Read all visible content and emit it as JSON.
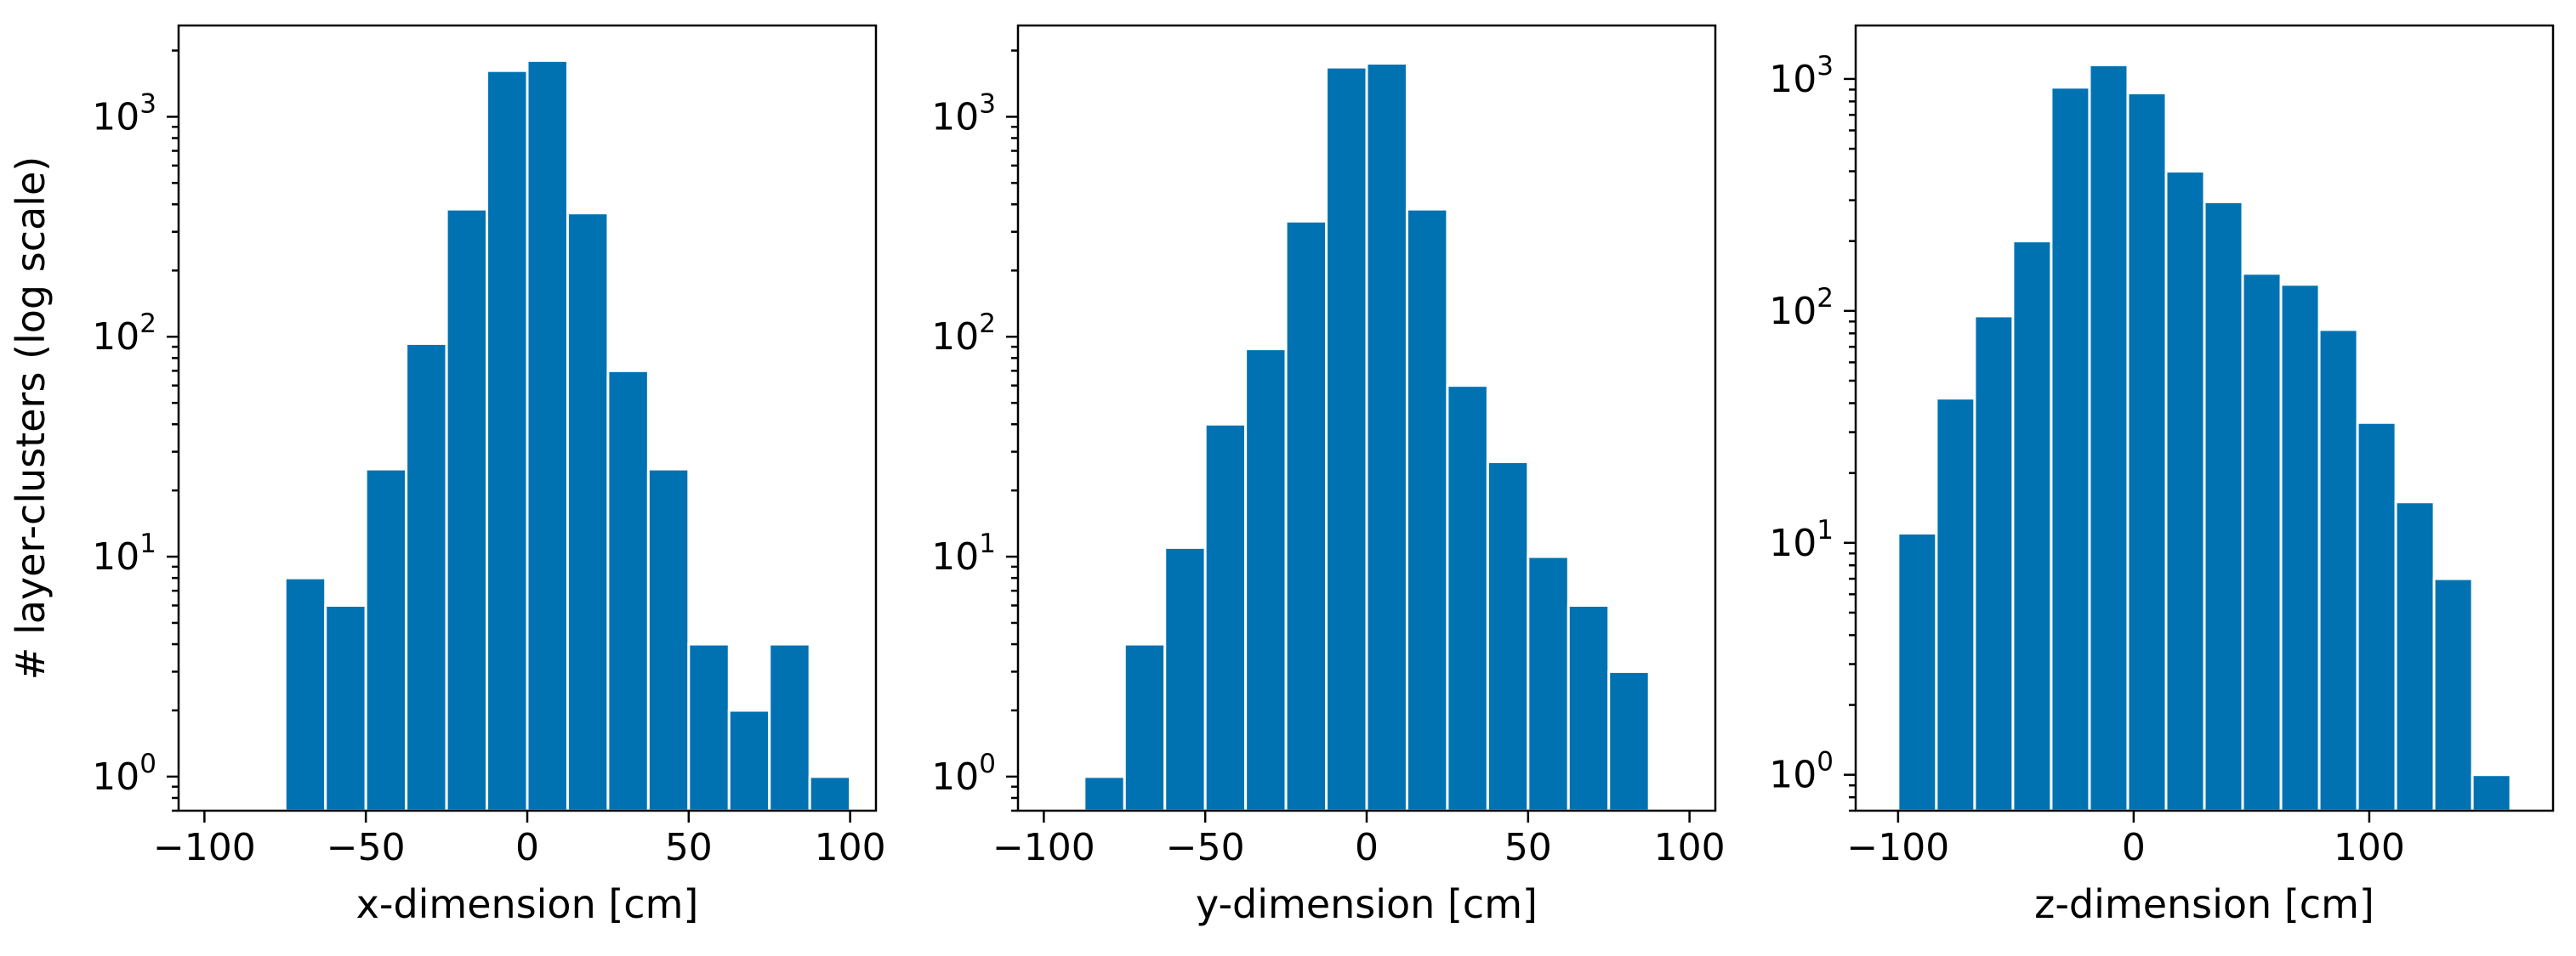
{
  "figure": {
    "ylabel": "# layer-clusters (log scale)",
    "bar_color": "#0072b2",
    "edge_color": "#ffffff"
  },
  "chart_data": [
    {
      "type": "bar",
      "title": "",
      "xlabel": "x-dimension [cm]",
      "ylabel": "# layer-clusters (log scale)",
      "yscale": "log",
      "xlim": [
        -108,
        108
      ],
      "ylim": [
        0.7,
        2600
      ],
      "xticks": [
        -100,
        -50,
        0,
        50,
        100
      ],
      "xtick_labels": [
        "−100",
        "−50",
        "0",
        "50",
        "100"
      ],
      "yticks": [
        1,
        10,
        100,
        1000
      ],
      "ytick_labels": [
        "10",
        "10",
        "10",
        "10"
      ],
      "ytick_exponents": [
        "0",
        "1",
        "2",
        "3"
      ],
      "bin_edges": [
        -75,
        -62.5,
        -50,
        -37.5,
        -25,
        -12.5,
        0,
        12.5,
        25,
        37.5,
        50,
        62.5,
        75,
        87.5,
        100
      ],
      "values": [
        8,
        6,
        25,
        93,
        380,
        1620,
        1800,
        365,
        70,
        25,
        4,
        2,
        4,
        1
      ]
    },
    {
      "type": "bar",
      "title": "",
      "xlabel": "y-dimension [cm]",
      "ylabel": "",
      "yscale": "log",
      "xlim": [
        -108,
        108
      ],
      "ylim": [
        0.7,
        2600
      ],
      "xticks": [
        -100,
        -50,
        0,
        50,
        100
      ],
      "xtick_labels": [
        "−100",
        "−50",
        "0",
        "50",
        "100"
      ],
      "yticks": [
        1,
        10,
        100,
        1000
      ],
      "ytick_labels": [
        "10",
        "10",
        "10",
        "10"
      ],
      "ytick_exponents": [
        "0",
        "1",
        "2",
        "3"
      ],
      "bin_edges": [
        -87.5,
        -75,
        -62.5,
        -50,
        -37.5,
        -25,
        -12.5,
        0,
        12.5,
        25,
        37.5,
        50,
        62.5,
        75,
        87.5
      ],
      "values": [
        1,
        4,
        11,
        40,
        88,
        335,
        1680,
        1750,
        380,
        60,
        27,
        10,
        6,
        3
      ]
    },
    {
      "type": "bar",
      "title": "",
      "xlabel": "z-dimension [cm]",
      "ylabel": "",
      "yscale": "log",
      "xlim": [
        -118,
        178
      ],
      "ylim": [
        0.7,
        1700
      ],
      "xticks": [
        -100,
        0,
        100
      ],
      "xtick_labels": [
        "−100",
        "0",
        "100"
      ],
      "yticks": [
        1,
        10,
        100,
        1000
      ],
      "ytick_labels": [
        "10",
        "10",
        "10",
        "10"
      ],
      "ytick_exponents": [
        "0",
        "1",
        "2",
        "3"
      ],
      "bin_edges": [
        -100,
        -83.75,
        -67.5,
        -51.25,
        -35,
        -18.75,
        -2.5,
        13.75,
        30,
        46.25,
        62.5,
        78.75,
        95,
        111.25,
        127.5,
        143.75,
        160
      ],
      "values": [
        11,
        42,
        95,
        200,
        920,
        1150,
        870,
        400,
        295,
        145,
        130,
        83,
        33,
        15,
        7,
        1
      ]
    }
  ]
}
